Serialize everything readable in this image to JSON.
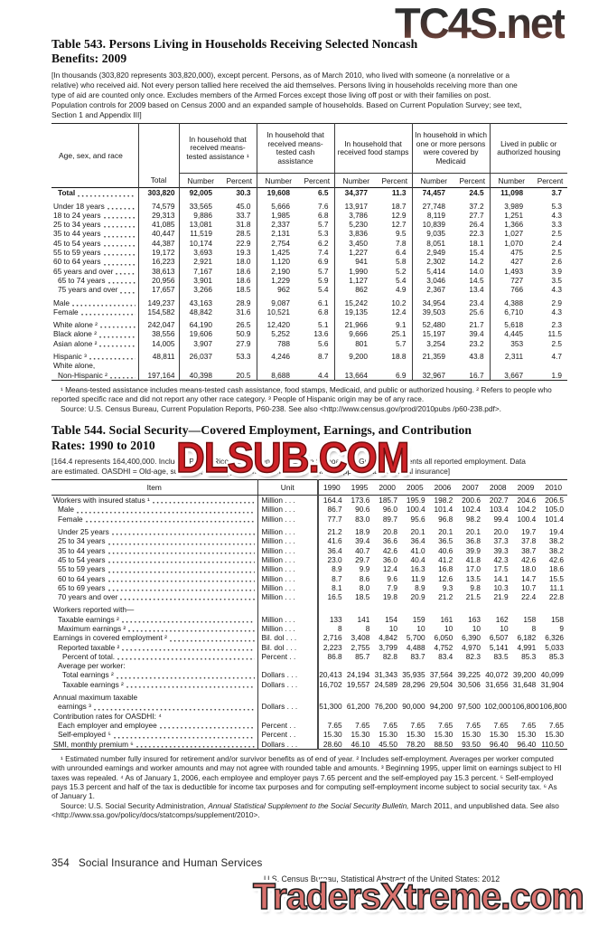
{
  "watermarks": {
    "top": "TC4S.net",
    "middle": "DLSUB.COM",
    "bottom": "TradersXtreme.com",
    "middle_color": "#ce2127",
    "bottom_color": "#d7716d"
  },
  "table543": {
    "title_line1": "Table 543. Persons Living in Households Receiving Selected Noncash",
    "title_line2": "Benefits: 2009",
    "note": "[In thousands (303,820 represents 303,820,000), except percent. Persons, as of March 2010, who lived with someone (a nonrelative or a relative) who received aid. Not every person tallied here received the aid themselves. Persons living in households receiving more than one type of aid are counted only once. Excludes members of the Armed Forces except those living off post or with their families on post. Population controls for 2009 based on Census 2000 and an expanded sample of households. Based on Current Population Survey; see text, Section 1 and Appendix III]",
    "stub_header": "Age, sex, and race",
    "total_header": "Total",
    "group_headers": [
      "In household that received means-tested assistance ¹",
      "In household that received means-tested cash assistance",
      "In household that received food stamps",
      "In household in which one or more persons were covered by Medicaid",
      "Lived in public or authorized housing"
    ],
    "sub_headers": [
      "Number",
      "Percent"
    ],
    "rows": [
      {
        "label": "Total",
        "bold": true,
        "indent": 1,
        "cells": [
          "303,820",
          "92,005",
          "30.3",
          "19,608",
          "6.5",
          "34,377",
          "11.3",
          "74,457",
          "24.5",
          "11,098",
          "3.7"
        ]
      },
      {
        "label": "Under 18 years",
        "gap": true,
        "cells": [
          "74,579",
          "33,565",
          "45.0",
          "5,666",
          "7.6",
          "13,917",
          "18.7",
          "27,748",
          "37.2",
          "3,989",
          "5.3"
        ]
      },
      {
        "label": "18 to 24 years",
        "cells": [
          "29,313",
          "9,886",
          "33.7",
          "1,985",
          "6.8",
          "3,786",
          "12.9",
          "8,119",
          "27.7",
          "1,251",
          "4.3"
        ]
      },
      {
        "label": "25 to 34 years",
        "cells": [
          "41,085",
          "13,081",
          "31.8",
          "2,337",
          "5.7",
          "5,230",
          "12.7",
          "10,839",
          "26.4",
          "1,366",
          "3.3"
        ]
      },
      {
        "label": "35 to 44 years",
        "cells": [
          "40,447",
          "11,519",
          "28.5",
          "2,131",
          "5.3",
          "3,836",
          "9.5",
          "9,035",
          "22.3",
          "1,027",
          "2.5"
        ]
      },
      {
        "label": "45 to 54 years",
        "cells": [
          "44,387",
          "10,174",
          "22.9",
          "2,754",
          "6.2",
          "3,450",
          "7.8",
          "8,051",
          "18.1",
          "1,070",
          "2.4"
        ]
      },
      {
        "label": "55 to 59 years",
        "cells": [
          "19,172",
          "3,693",
          "19.3",
          "1,425",
          "7.4",
          "1,227",
          "6.4",
          "2,949",
          "15.4",
          "475",
          "2.5"
        ]
      },
      {
        "label": "60 to 64 years",
        "cells": [
          "16,223",
          "2,921",
          "18.0",
          "1,120",
          "6.9",
          "941",
          "5.8",
          "2,302",
          "14.2",
          "427",
          "2.6"
        ]
      },
      {
        "label": "65 years and over",
        "cells": [
          "38,613",
          "7,167",
          "18.6",
          "2,190",
          "5.7",
          "1,990",
          "5.2",
          "5,414",
          "14.0",
          "1,493",
          "3.9"
        ]
      },
      {
        "label": "65 to 74 years",
        "indent": 1,
        "cells": [
          "20,956",
          "3,901",
          "18.6",
          "1,229",
          "5.9",
          "1,127",
          "5.4",
          "3,046",
          "14.5",
          "727",
          "3.5"
        ]
      },
      {
        "label": "75 years and over",
        "indent": 1,
        "cells": [
          "17,657",
          "3,266",
          "18.5",
          "962",
          "5.4",
          "862",
          "4.9",
          "2,367",
          "13.4",
          "766",
          "4.3"
        ]
      },
      {
        "label": "Male",
        "gap": true,
        "cells": [
          "149,237",
          "43,163",
          "28.9",
          "9,087",
          "6.1",
          "15,242",
          "10.2",
          "34,954",
          "23.4",
          "4,388",
          "2.9"
        ]
      },
      {
        "label": "Female",
        "cells": [
          "154,582",
          "48,842",
          "31.6",
          "10,521",
          "6.8",
          "19,135",
          "12.4",
          "39,503",
          "25.6",
          "6,710",
          "4.3"
        ]
      },
      {
        "label": "White alone ²",
        "gap": true,
        "cells": [
          "242,047",
          "64,190",
          "26.5",
          "12,420",
          "5.1",
          "21,966",
          "9.1",
          "52,480",
          "21.7",
          "5,618",
          "2.3"
        ]
      },
      {
        "label": "Black alone ²",
        "cells": [
          "38,556",
          "19,606",
          "50.9",
          "5,252",
          "13.6",
          "9,666",
          "25.1",
          "15,197",
          "39.4",
          "4,445",
          "11.5"
        ]
      },
      {
        "label": "Asian alone ²",
        "cells": [
          "14,005",
          "3,907",
          "27.9",
          "788",
          "5.6",
          "801",
          "5.7",
          "3,254",
          "23.2",
          "353",
          "2.5"
        ]
      },
      {
        "label": "Hispanic ³",
        "gap": true,
        "cells": [
          "48,811",
          "26,037",
          "53.3",
          "4,246",
          "8.7",
          "9,200",
          "18.8",
          "21,359",
          "43.8",
          "2,311",
          "4.7"
        ]
      },
      {
        "label": "White alone,",
        "cells": null
      },
      {
        "label": "Non-Hispanic ²",
        "indent": 1,
        "cells": [
          "197,164",
          "40,398",
          "20.5",
          "8,688",
          "4.4",
          "13,664",
          "6.9",
          "32,967",
          "16.7",
          "3,667",
          "1.9"
        ]
      }
    ],
    "footnotes": "¹ Means-tested assistance includes means-tested cash assistance, food stamps, Medicaid, and public or authorized housing. ² Refers to people who reported specific race and did not report any other race category. ³ People of Hispanic origin may be of any race.",
    "source": "Source: U.S. Census Bureau, Current Population Reports,  P60-238. See also <http://www.census.gov/prod/2010pubs /p60-238.pdf>."
  },
  "table544": {
    "title_line1": "Table 544. Social Security—Covered Employment, Earnings, and Contribution",
    "title_line2": "Rates: 1990 to 2010",
    "note": "[164.4 represents 164,400,000. Includes Puerto Rico, Virgin Islands, American Samoa, and Guam. Represents all reported employment. Data are estimated. OASDHI = Old-age, survivors, disability, and health insurance; SMI = Supplementary medical insurance]",
    "item_header": "Item",
    "unit_header": "Unit",
    "years": [
      "1990",
      "1995",
      "2000",
      "2005",
      "2006",
      "2007",
      "2008",
      "2009",
      "2010"
    ],
    "rows": [
      {
        "label": "Workers with insured status ¹",
        "unit": "Million . . .",
        "cells": [
          "164.4",
          "173.6",
          "185.7",
          "195.9",
          "198.2",
          "200.6",
          "202.7",
          "204.6",
          "206.5"
        ]
      },
      {
        "label": "Male",
        "indent": 1,
        "unit": "Million . . .",
        "cells": [
          "86.7",
          "90.6",
          "96.0",
          "100.4",
          "101.4",
          "102.4",
          "103.4",
          "104.2",
          "105.0"
        ]
      },
      {
        "label": "Female",
        "indent": 1,
        "unit": "Million . . .",
        "cells": [
          "77.7",
          "83.0",
          "89.7",
          "95.6",
          "96.8",
          "98.2",
          "99.4",
          "100.4",
          "101.4"
        ]
      },
      {
        "label": "Under 25 years",
        "indent": 1,
        "gap": true,
        "unit": "Million . . .",
        "cells": [
          "21.2",
          "18.9",
          "20.8",
          "20.1",
          "20.1",
          "20.1",
          "20.0",
          "19.7",
          "19.4"
        ]
      },
      {
        "label": "25 to 34 years",
        "indent": 1,
        "unit": "Million . . .",
        "cells": [
          "41.6",
          "39.4",
          "36.6",
          "36.4",
          "36.5",
          "36.8",
          "37.3",
          "37.8",
          "38.2"
        ]
      },
      {
        "label": "35 to 44 years",
        "indent": 1,
        "unit": "Million . . .",
        "cells": [
          "36.4",
          "40.7",
          "42.6",
          "41.0",
          "40.6",
          "39.9",
          "39.3",
          "38.7",
          "38.2"
        ]
      },
      {
        "label": "45 to 54 years",
        "indent": 1,
        "unit": "Million . . .",
        "cells": [
          "23.0",
          "29.7",
          "36.0",
          "40.4",
          "41.2",
          "41.8",
          "42.3",
          "42.6",
          "42.6"
        ]
      },
      {
        "label": "55 to 59 years",
        "indent": 1,
        "unit": "Million . . .",
        "cells": [
          "8.9",
          "9.9",
          "12.4",
          "16.3",
          "16.8",
          "17.0",
          "17.5",
          "18.0",
          "18.6"
        ]
      },
      {
        "label": "60 to 64 years",
        "indent": 1,
        "unit": "Million . . .",
        "cells": [
          "8.7",
          "8.6",
          "9.6",
          "11.9",
          "12.6",
          "13.5",
          "14.1",
          "14.7",
          "15.5"
        ]
      },
      {
        "label": "65 to 69 years",
        "indent": 1,
        "unit": "Million . . .",
        "cells": [
          "8.1",
          "8.0",
          "7.9",
          "8.9",
          "9.3",
          "9.8",
          "10.3",
          "10.7",
          "11.1"
        ]
      },
      {
        "label": "70 years and over",
        "indent": 1,
        "unit": "Million . . .",
        "cells": [
          "16.5",
          "18.5",
          "19.8",
          "20.9",
          "21.2",
          "21.5",
          "21.9",
          "22.4",
          "22.8"
        ]
      },
      {
        "label": "Workers reported with—",
        "gap": true,
        "cells": null
      },
      {
        "label": "Taxable earnings ²",
        "indent": 1,
        "unit": "Million . . .",
        "cells": [
          "133",
          "141",
          "154",
          "159",
          "161",
          "163",
          "162",
          "158",
          "158"
        ]
      },
      {
        "label": "Maximum earnings ²",
        "indent": 1,
        "unit": "Million . . .",
        "cells": [
          "8",
          "8",
          "10",
          "10",
          "10",
          "10",
          "10",
          "8",
          "9"
        ]
      },
      {
        "label": "Earnings in covered employment ²",
        "unit": "Bil. dol . . .",
        "cells": [
          "2,716",
          "3,408",
          "4,842",
          "5,700",
          "6,050",
          "6,390",
          "6,507",
          "6,182",
          "6,326"
        ]
      },
      {
        "label": "Reported taxable ²",
        "indent": 1,
        "unit": "Bil. dol . . .",
        "cells": [
          "2,223",
          "2,755",
          "3,799",
          "4,488",
          "4,752",
          "4,970",
          "5,141",
          "4,991",
          "5,033"
        ]
      },
      {
        "label": "Percent of total.",
        "indent": 2,
        "unit": "Percent . .",
        "cells": [
          "86.8",
          "85.7",
          "82.8",
          "83.7",
          "83.4",
          "82.3",
          "83.5",
          "85.3",
          "85.3"
        ]
      },
      {
        "label": "Average per worker:",
        "indent": 1,
        "cells": null
      },
      {
        "label": "Total earnings ²",
        "indent": 2,
        "unit": "Dollars . . .",
        "cells": [
          "20,413",
          "24,194",
          "31,343",
          "35,935",
          "37,564",
          "39,225",
          "40,072",
          "39,200",
          "40,099"
        ]
      },
      {
        "label": "Taxable earnings ²",
        "indent": 2,
        "unit": "Dollars . . .",
        "cells": [
          "16,702",
          "19,557",
          "24,589",
          "28,296",
          "29,504",
          "30,506",
          "31,656",
          "31,648",
          "31,904"
        ]
      },
      {
        "label": "Annual maximum taxable",
        "gap": true,
        "cells": null
      },
      {
        "label": "earnings ³",
        "indent": 1,
        "unit": "Dollars . . .",
        "cells": [
          "51,300",
          "61,200",
          "76,200",
          "90,000",
          "94,200",
          "97,500",
          "102,000",
          "106,800",
          "106,800"
        ]
      },
      {
        "label": "Contribution rates for OASDHI: ⁴",
        "cells": null
      },
      {
        "label": "Each employer and employee",
        "indent": 1,
        "unit": "Percent . .",
        "cells": [
          "7.65",
          "7.65",
          "7.65",
          "7.65",
          "7.65",
          "7.65",
          "7.65",
          "7.65",
          "7.65"
        ]
      },
      {
        "label": "Self-employed ⁵",
        "indent": 1,
        "unit": "Percent . .",
        "cells": [
          "15.30",
          "15.30",
          "15.30",
          "15.30",
          "15.30",
          "15.30",
          "15.30",
          "15.30",
          "15.30"
        ]
      },
      {
        "label": "SMI, monthly premium ⁶",
        "unit": "Dollars . . .",
        "cells": [
          "28.60",
          "46.10",
          "45.50",
          "78.20",
          "88.50",
          "93.50",
          "96.40",
          "96.40",
          "110.50"
        ]
      }
    ],
    "footnotes": "¹ Estimated number fully insured for retirement and/or survivor benefits as of end of year. ² Includes self-employment. Averages per worker computed with unrounded earnings and worker amounts and may not agree with rounded table and amounts. ³ Beginning 1995, upper limit on earnings subject to HI taxes was repealed. ⁴ As of January 1, 2006, each employee and employer pays 7.65 percent and the self-employed pay 15.3 percent. ⁵ Self-employed pays 15.3 percent and half of the tax is deductible for income tax purposes and for computing self-employment income subject to social security tax. ⁶ As of January 1.",
    "source_pre": "Source: U.S. Social Security Administration, ",
    "source_italic": "Annual Statistical Supplement to the Social Security Bulletin,",
    "source_post": " March 2011, and unpublished data. See also <http://www.ssa.gov/policy/docs/statcomps/supplement/2010>."
  },
  "footer": {
    "page_number": "354",
    "section_title": "Social Insurance and Human Services",
    "source_line": "U.S. Census Bureau, Statistical Abstract of the United States: 2012"
  }
}
